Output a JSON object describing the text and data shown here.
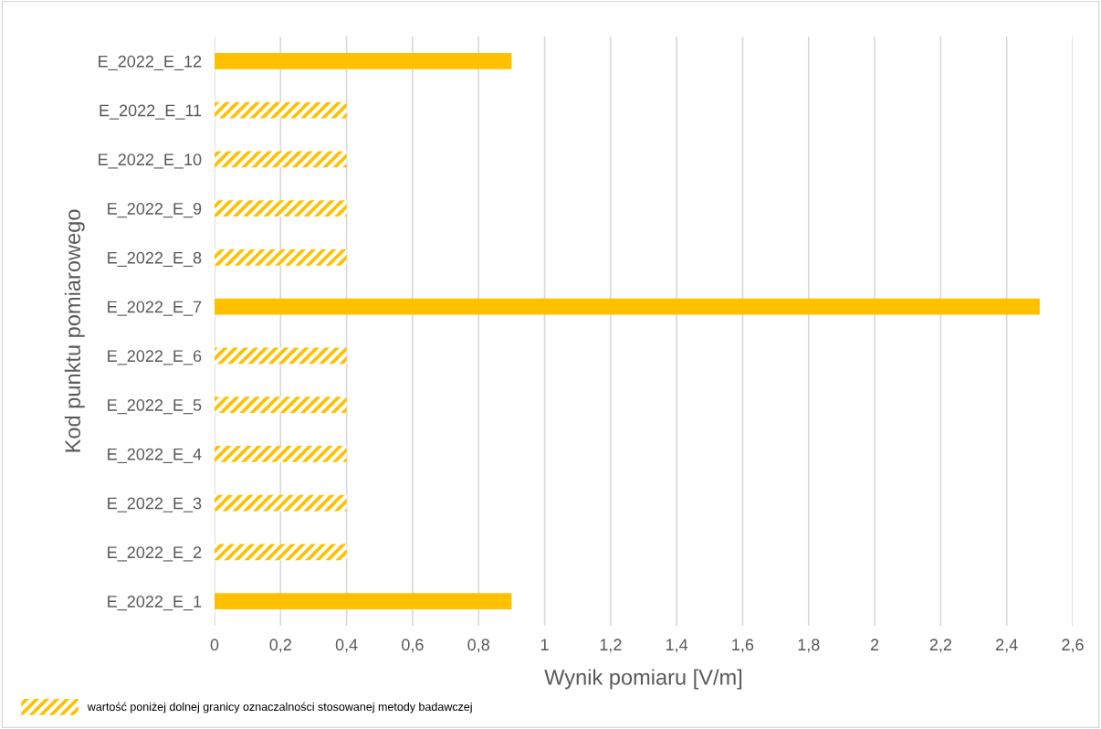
{
  "chart_data": {
    "type": "bar",
    "orientation": "horizontal",
    "xlabel": "Wynik pomiaru [V/m]",
    "ylabel": "Kod punktu pomiarowego",
    "categories": [
      "E_2022_E_12",
      "E_2022_E_11",
      "E_2022_E_10",
      "E_2022_E_9",
      "E_2022_E_8",
      "E_2022_E_7",
      "E_2022_E_6",
      "E_2022_E_5",
      "E_2022_E_4",
      "E_2022_E_3",
      "E_2022_E_2",
      "E_2022_E_1"
    ],
    "series": [
      {
        "color": "#ffc000",
        "values": [
          0.9,
          null,
          null,
          null,
          null,
          2.5,
          null,
          null,
          null,
          null,
          null,
          0.9
        ]
      },
      {
        "name": "wartość poniżej dolnej granicy oznaczalności stosowanej metody badawczej",
        "color": "#ffc000",
        "values": [
          null,
          0.4,
          0.4,
          0.4,
          0.4,
          null,
          0.4,
          0.4,
          0.4,
          0.4,
          0.4,
          null
        ]
      }
    ],
    "xlim": [
      0,
      2.6
    ],
    "xticks": [
      0,
      {
        "value": 0.2,
        "label": "0,2"
      },
      {
        "value": 0.4,
        "label": "0,4"
      },
      {
        "value": 0.6,
        "label": "0,6"
      },
      {
        "value": 0.8,
        "label": "0,8"
      },
      1,
      {
        "value": 1.2,
        "label": "1,2"
      },
      {
        "value": 1.4,
        "label": "1,4"
      },
      {
        "value": 1.6,
        "label": "1,6"
      },
      {
        "value": 1.8,
        "label": "1,8"
      },
      2,
      {
        "value": 2.2,
        "label": "2,2"
      },
      {
        "value": 2.4,
        "label": "2,4"
      },
      {
        "value": 2.6,
        "label": "2,6"
      }
    ],
    "grid": "x",
    "legend": "bottom left"
  }
}
